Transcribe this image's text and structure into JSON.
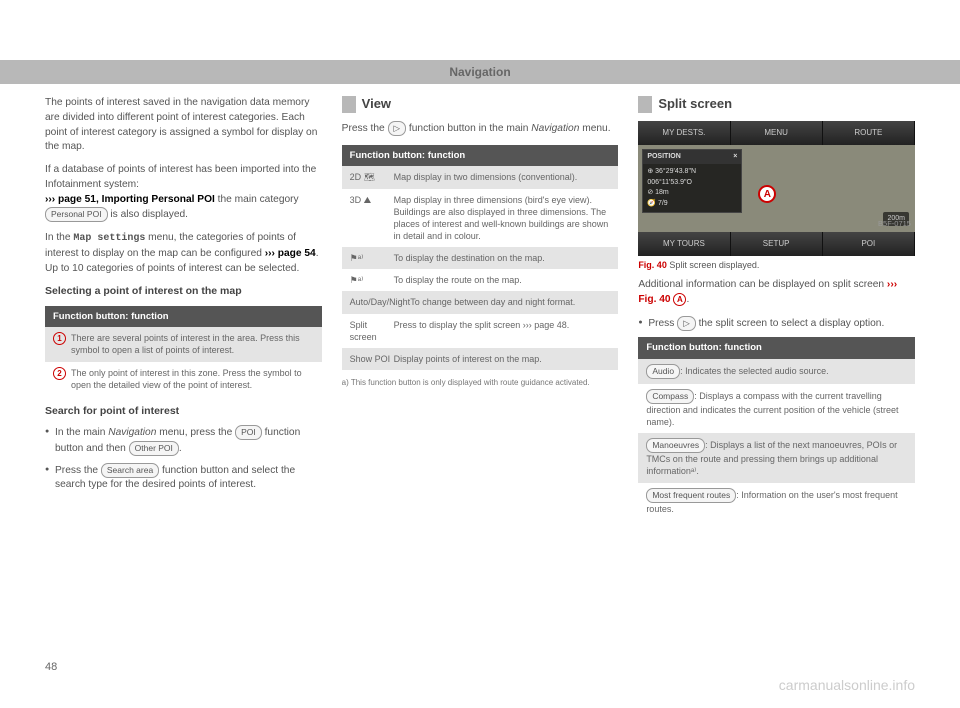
{
  "header": {
    "title": "Navigation"
  },
  "page_number": "48",
  "watermark": "carmanualsonline.info",
  "col1": {
    "p1": "The points of interest saved in the navigation data memory are divided into different point of interest categories. Each point of interest category is assigned a symbol for display on the map.",
    "p2a": "If a database of points of interest has been imported into the Infotainment system:",
    "p2b": "››› page 51, Importing Personal POI",
    "p2c": " the main category ",
    "p2d": "Personal POI",
    "p2e": " is also displayed.",
    "p3a": "In the ",
    "p3b": "Map settings",
    "p3c": " menu, the categories of points of interest to display on the map can be configured ",
    "p3d": "››› page 54",
    "p3e": ". Up to 10 categories of points of interest can be selected.",
    "h_select": "Selecting a point of interest on the map",
    "table1": {
      "header": "Function button: function",
      "rows": [
        {
          "icon": "1",
          "text": "There are several points of interest in the area. Press this symbol to open a list of points of interest."
        },
        {
          "icon": "2",
          "text": "The only point of interest in this zone. Press the symbol to open the detailed view of the point of interest."
        }
      ]
    },
    "h_search": "Search for point of interest",
    "b1a": "In the main ",
    "b1b": "Navigation",
    "b1c": " menu, press the ",
    "b1d": "POI",
    "b1e": " function button and then ",
    "b1f": "Other POI",
    "b2a": "Press the ",
    "b2b": "Search area",
    "b2c": " function button and select the search type for the desired points of interest."
  },
  "col2": {
    "h_view": "View",
    "p1a": "Press the ",
    "p1b": " function button in the main ",
    "p1c": "Navigation",
    "p1d": " menu.",
    "table": {
      "header": "Function button: function",
      "rows": [
        {
          "c1": "2D 🗺",
          "c2": "Map display in two dimensions (conventional)."
        },
        {
          "c1": "3D ⛰",
          "c2": "Map display in three dimensions (bird's eye view).\nBuildings are also displayed in three dimensions. The places of interest and well-known buildings are shown in detail and in colour."
        },
        {
          "c1": "⚑ᵃ⁾",
          "c2": "To display the destination on the map."
        },
        {
          "c1": "⚑ᵃ⁾",
          "c2": "To display the route on the map."
        },
        {
          "c1": "Auto/Day/Night",
          "c2": "To change between day and night format."
        },
        {
          "c1": "Split screen",
          "c2": "Press to display the split screen ››› page 48."
        },
        {
          "c1": "Show POI",
          "c2": "Display points of interest on the map."
        }
      ]
    },
    "footnote": "a)  This function button is only displayed with route guidance activated."
  },
  "col3": {
    "h_split": "Split screen",
    "ss": {
      "top_tabs": [
        "MY DESTS.",
        "MENU",
        "ROUTE"
      ],
      "bot_tabs": [
        "MY TOURS",
        "SETUP",
        "POI"
      ],
      "panel_title": "POSITION",
      "panel_close": "×",
      "panel_lines": [
        "⊕  36°29'43.8\"N",
        "     006°11'53.9\"O",
        "⊘  18m",
        "🧭 7/9"
      ],
      "marker": "A",
      "scale": "200m",
      "ref": "B5F-0715"
    },
    "fig_caption_num": "Fig. 40",
    "fig_caption_text": "  Split screen displayed.",
    "p1a": "Additional information can be displayed on split screen ",
    "p1b": "››› Fig. 40",
    "b1a": "Press ",
    "b1b": " the split screen to select a display option.",
    "table": {
      "header": "Function button: function",
      "rows": [
        {
          "btn": "Audio",
          "text": ": Indicates the selected audio source."
        },
        {
          "btn": "Compass",
          "text": ": Displays a compass with the current travelling direction and indicates the current position of the vehicle (street name)."
        },
        {
          "btn": "Manoeuvres",
          "text": ": Displays a list of the next manoeuvres, POIs or TMCs on the route and pressing them brings up additional informationᵃ⁾."
        },
        {
          "btn": "Most frequent routes",
          "text": ": Information on the user's most frequent routes."
        }
      ]
    }
  }
}
